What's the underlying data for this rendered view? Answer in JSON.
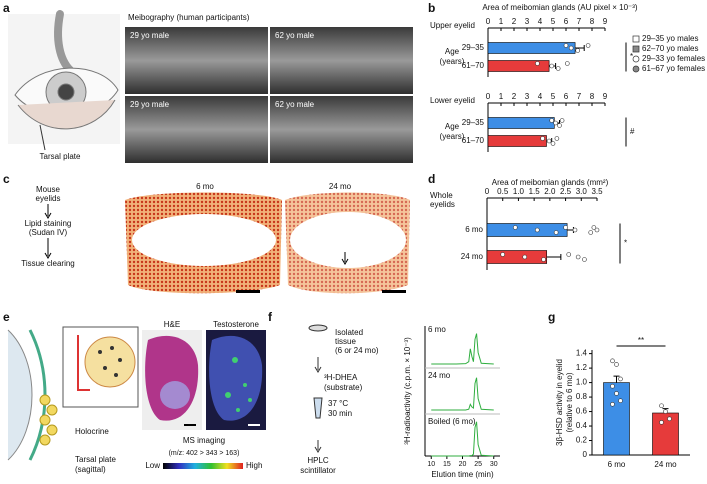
{
  "panel_labels": [
    "a",
    "b",
    "c",
    "d",
    "e",
    "f",
    "g"
  ],
  "a": {
    "tarsal_label": "Tarsal plate",
    "meibography_title": "Meibography (human participants)",
    "image_labels": [
      "29 yo male",
      "62 yo male",
      "29 yo male",
      "62 yo male"
    ]
  },
  "c": {
    "steps": [
      [
        "Mouse",
        "eyelids"
      ],
      [
        "Lipid staining",
        "(Sudan IV)"
      ],
      [
        "Tissue clearing"
      ]
    ],
    "image_labels": [
      "6 mo",
      "24 mo"
    ]
  },
  "e": {
    "holocrine": "Holocrine",
    "tarsal": [
      "Tarsal plate",
      "(sagittal)"
    ],
    "stain_labels": [
      "H&E",
      "Testosterone"
    ],
    "ms_title": "MS imaging",
    "ms_sub": "(m/z: 402 > 343 > 163)",
    "scale_low": "Low",
    "scale_high": "High"
  },
  "f": {
    "steps": [
      [
        "Isolated",
        "tissue",
        "(6 or 24 mo)"
      ],
      [
        "³H-DHEA",
        "(substrate)"
      ],
      [
        "37 °C",
        "30 min"
      ],
      [
        "HPLC",
        "scintillator"
      ]
    ]
  },
  "chart_data": [
    {
      "type": "hbar",
      "title": "Area of meibomian glands (AU pixel × 10⁻³)",
      "xlim": [
        0,
        9
      ],
      "xticks": [
        0,
        1,
        2,
        3,
        4,
        5,
        6,
        7,
        8,
        9
      ],
      "colors": [
        "#3d8ee6",
        "#e63b3b"
      ],
      "panels": [
        {
          "title_lines": [
            "Upper eyelid"
          ],
          "axis_label": [
            "Age",
            "(years)"
          ],
          "categories": [
            "29–35",
            "61–70"
          ],
          "values": [
            6.7,
            4.7
          ],
          "errors": [
            0.7,
            0.5
          ],
          "points": [
            [
              6.0,
              6.4,
              6.9,
              7.7
            ],
            [
              3.8,
              4.9,
              5.4,
              6.1
            ]
          ],
          "significance": "*"
        },
        {
          "title_lines": [
            "Lower eyelid"
          ],
          "axis_label": [
            "Age",
            "(years)"
          ],
          "categories": [
            "29–35",
            "61–70"
          ],
          "values": [
            5.1,
            4.5
          ],
          "errors": [
            0.4,
            0.4
          ],
          "points": [
            [
              4.9,
              5.2,
              5.5,
              5.7
            ],
            [
              4.2,
              4.7,
              5.0,
              5.3
            ]
          ],
          "significance": "#"
        }
      ],
      "legend": [
        {
          "label": "29–35 yo males",
          "marker": "square-open"
        },
        {
          "label": "62–70 yo males",
          "marker": "square-filled"
        },
        {
          "label": "29–33 yo females",
          "marker": "circle-open"
        },
        {
          "label": "61–67 yo females",
          "marker": "circle-filled"
        }
      ]
    },
    {
      "type": "hbar",
      "title": "Area of meibomian glands (mm²)",
      "xlim": [
        0,
        3.5
      ],
      "xticks": [
        0,
        0.5,
        {
          "value": 1,
          "label": "1.0"
        },
        1.5,
        {
          "value": 2,
          "label": "2.0"
        },
        2.5,
        {
          "value": 3,
          "label": "3.0"
        },
        3.5
      ],
      "colors": [
        "#3d8ee6",
        "#e63b3b"
      ],
      "panels": [
        {
          "title_lines": [
            "Whole",
            "eyelids"
          ],
          "categories": [
            "6 mo",
            "24 mo"
          ],
          "values": [
            2.55,
            1.9
          ],
          "errors": [
            0.2,
            0.45
          ],
          "points": [
            [
              0.9,
              1.6,
              2.2,
              2.5,
              2.8,
              3.3,
              3.4,
              3.5
            ],
            [
              0.5,
              1.2,
              1.8,
              2.6,
              2.9,
              3.1
            ]
          ],
          "significance": "*"
        }
      ]
    },
    {
      "type": "line",
      "y_label": "³H-radioactivity (c.p.m. × 10⁻³)",
      "x_label": "Elution time (min)",
      "xlim": [
        8,
        32
      ],
      "xticks": [
        10,
        15,
        20,
        25,
        30
      ],
      "ylim": [
        0,
        10
      ],
      "x": [
        10,
        18,
        21,
        22,
        22.5,
        23,
        23.5,
        24,
        24.5,
        25,
        26,
        30
      ],
      "series": [
        {
          "name": "6 mo",
          "color": "#2fae3f",
          "values": [
            0,
            0,
            0.1,
            0.6,
            4,
            2,
            0.6,
            6.5,
            8,
            3,
            0.2,
            0
          ]
        },
        {
          "name": "24 mo",
          "color": "#2fae3f",
          "values": [
            0,
            0,
            0,
            0.2,
            1.5,
            0.8,
            0.5,
            7,
            8.5,
            3,
            0.2,
            0
          ]
        },
        {
          "name": "Boiled (6 mo)",
          "color": "#2fae3f",
          "values": [
            0,
            0,
            0,
            0,
            0.1,
            0.1,
            0.5,
            7.5,
            9,
            3,
            0.2,
            0
          ]
        }
      ]
    },
    {
      "type": "bar",
      "y_label": [
        "3β-HSD activity in eyelid",
        "(relative to 6 mo)"
      ],
      "categories": [
        "6 mo",
        "24 mo"
      ],
      "values": [
        1.0,
        0.58
      ],
      "errors": [
        0.09,
        0.06
      ],
      "points": [
        [
          1.3,
          1.25,
          1.05,
          0.95,
          0.85,
          0.75,
          0.7
        ],
        [
          0.68,
          0.6,
          0.5,
          0.45
        ]
      ],
      "colors": [
        "#3d8ee6",
        "#e63b3b"
      ],
      "ylim": [
        0,
        1.45
      ],
      "yticks": [
        0,
        0.2,
        0.4,
        0.6,
        0.8,
        {
          "value": 1,
          "label": "1.0"
        },
        1.2,
        1.4
      ],
      "significance": "**"
    }
  ]
}
